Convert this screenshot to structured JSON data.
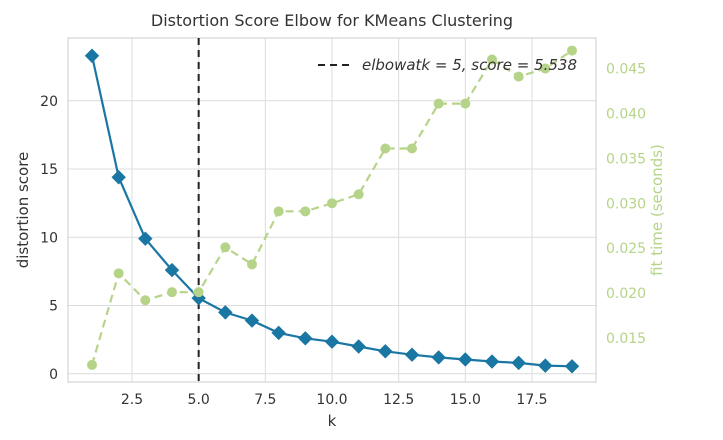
{
  "chart_data": {
    "type": "line",
    "title": "Distortion Score Elbow for KMeans Clustering",
    "xlabel": "k",
    "ylabel": "distortion score",
    "y2label": "fit time (seconds)",
    "xlim": [
      0.1,
      19.9
    ],
    "ylim": [
      -0.6,
      24.6
    ],
    "y2lim": [
      0.0101,
      0.0484
    ],
    "x_ticks": [
      "2.5",
      "5.0",
      "7.5",
      "10.0",
      "12.5",
      "15.0",
      "17.5"
    ],
    "y_ticks": [
      "0",
      "5",
      "10",
      "15",
      "20"
    ],
    "y2_ticks": [
      "0.015",
      "0.020",
      "0.025",
      "0.030",
      "0.035",
      "0.040",
      "0.045"
    ],
    "x": [
      1,
      2,
      3,
      4,
      5,
      6,
      7,
      8,
      9,
      10,
      11,
      12,
      13,
      14,
      15,
      16,
      17,
      18,
      19
    ],
    "series": [
      {
        "name": "distortion score",
        "axis": "left",
        "color": "#1a76a3",
        "marker": "diamond",
        "values": [
          23.3,
          14.4,
          9.9,
          7.6,
          5.54,
          4.5,
          3.9,
          3.0,
          2.6,
          2.35,
          2.0,
          1.65,
          1.4,
          1.2,
          1.05,
          0.9,
          0.8,
          0.6,
          0.55
        ]
      },
      {
        "name": "fit time (seconds)",
        "axis": "right",
        "color": "#b6d488",
        "marker": "circle",
        "line": "dashed",
        "values": [
          0.012,
          0.0222,
          0.0192,
          0.0201,
          0.0201,
          0.0251,
          0.0232,
          0.0291,
          0.0291,
          0.03,
          0.031,
          0.0361,
          0.0361,
          0.0411,
          0.0411,
          0.046,
          0.0441,
          0.045,
          0.047
        ]
      }
    ],
    "elbow": {
      "x": 5,
      "color": "#222222",
      "line": "dashed",
      "label": "elbowatk = 5, score = 5.538"
    },
    "legend_position": "top-right",
    "grid": true
  }
}
